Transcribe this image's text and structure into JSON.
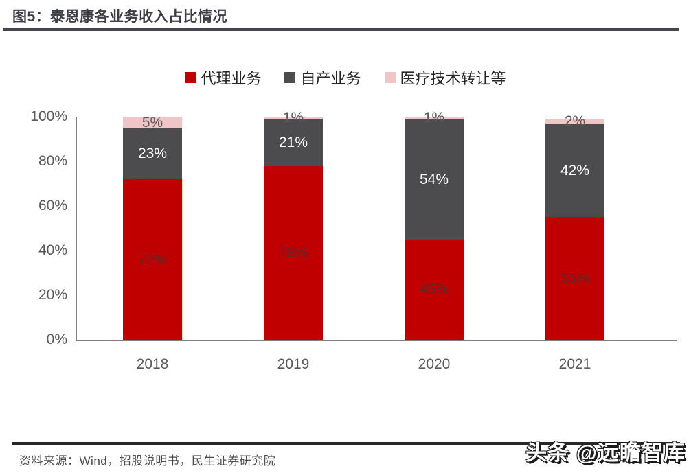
{
  "header": {
    "title": "图5：泰恩康各业务收入占比情况"
  },
  "chart_data": {
    "type": "bar",
    "stacked": true,
    "title": "泰恩康各业务收入占比情况",
    "categories": [
      "2018",
      "2019",
      "2020",
      "2021"
    ],
    "series": [
      {
        "name": "代理业务",
        "color": "#c00000",
        "label_color": "rgba(55,55,58,0.78)",
        "values": [
          72,
          78,
          45,
          55
        ]
      },
      {
        "name": "自产业务",
        "color": "#4c4c4e",
        "label_color": "#ffffff",
        "values": [
          23,
          21,
          54,
          42
        ]
      },
      {
        "name": "医疗技术转让等",
        "color": "#f0c5c7",
        "label_color": "#595959",
        "values": [
          5,
          1,
          1,
          2
        ]
      }
    ],
    "value_suffix": "%",
    "y_ticks": [
      "100%",
      "80%",
      "60%",
      "40%",
      "20%",
      "0%"
    ],
    "ylim": [
      0,
      100
    ],
    "grid": false,
    "legend_position": "top",
    "axis_color": "#7f7f7f"
  },
  "footer": {
    "source": "资料来源：Wind，招股说明书，民生证券研究院",
    "watermark": "头条 @远瞻智库"
  }
}
